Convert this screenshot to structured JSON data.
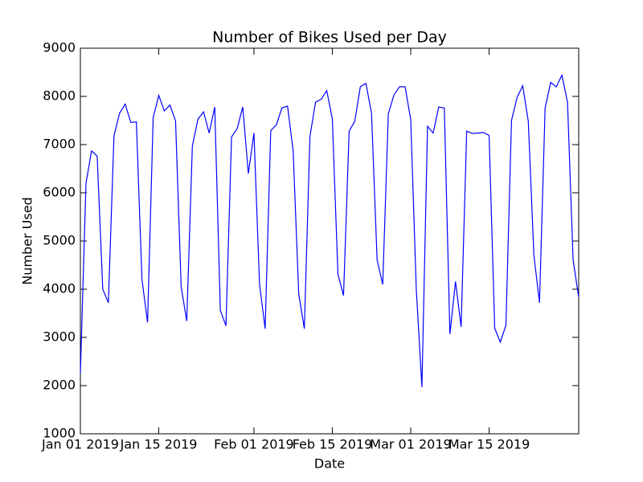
{
  "chart_data": {
    "type": "line",
    "title": "Number of Bikes Used per Day",
    "x_label": "Date",
    "y_label": "Number Used",
    "x": [
      "2019-01-01",
      "2019-01-02",
      "2019-01-03",
      "2019-01-04",
      "2019-01-05",
      "2019-01-06",
      "2019-01-07",
      "2019-01-08",
      "2019-01-09",
      "2019-01-10",
      "2019-01-11",
      "2019-01-12",
      "2019-01-13",
      "2019-01-14",
      "2019-01-15",
      "2019-01-16",
      "2019-01-17",
      "2019-01-18",
      "2019-01-19",
      "2019-01-20",
      "2019-01-21",
      "2019-01-22",
      "2019-01-23",
      "2019-01-24",
      "2019-01-25",
      "2019-01-26",
      "2019-01-27",
      "2019-01-28",
      "2019-01-29",
      "2019-01-30",
      "2019-01-31",
      "2019-02-01",
      "2019-02-02",
      "2019-02-03",
      "2019-02-04",
      "2019-02-05",
      "2019-02-06",
      "2019-02-07",
      "2019-02-08",
      "2019-02-09",
      "2019-02-10",
      "2019-02-11",
      "2019-02-12",
      "2019-02-13",
      "2019-02-14",
      "2019-02-15",
      "2019-02-16",
      "2019-02-17",
      "2019-02-18",
      "2019-02-19",
      "2019-02-20",
      "2019-02-21",
      "2019-02-22",
      "2019-02-23",
      "2019-02-24",
      "2019-02-25",
      "2019-02-26",
      "2019-02-27",
      "2019-02-28",
      "2019-03-01",
      "2019-03-02",
      "2019-03-03",
      "2019-03-04",
      "2019-03-05",
      "2019-03-06",
      "2019-03-07",
      "2019-03-08",
      "2019-03-09",
      "2019-03-10",
      "2019-03-11",
      "2019-03-12",
      "2019-03-13",
      "2019-03-14",
      "2019-03-15",
      "2019-03-16",
      "2019-03-17",
      "2019-03-18",
      "2019-03-19",
      "2019-03-20",
      "2019-03-21",
      "2019-03-22",
      "2019-03-23",
      "2019-03-24",
      "2019-03-25",
      "2019-03-26",
      "2019-03-27",
      "2019-03-28",
      "2019-03-29",
      "2019-03-30",
      "2019-03-31"
    ],
    "series": [
      {
        "name": "Number Used",
        "color": "#0000ff",
        "values": [
          2250,
          6200,
          6870,
          6760,
          4000,
          3720,
          7180,
          7650,
          7840,
          7460,
          7470,
          4200,
          3310,
          7560,
          8020,
          7700,
          7820,
          7490,
          4050,
          3340,
          6970,
          7530,
          7680,
          7240,
          7780,
          3560,
          3240,
          7160,
          7330,
          7780,
          6400,
          7240,
          4100,
          3180,
          7290,
          7410,
          7760,
          7800,
          6870,
          3900,
          3180,
          7170,
          7880,
          7940,
          8120,
          7530,
          4310,
          3870,
          7280,
          7480,
          8200,
          8270,
          7650,
          4600,
          4100,
          7640,
          8030,
          8200,
          8200,
          7520,
          3980,
          1970,
          7380,
          7240,
          7780,
          7760,
          3070,
          4160,
          3220,
          7280,
          7230,
          7240,
          7250,
          7190,
          3190,
          2900,
          3250,
          7500,
          7980,
          8220,
          7480,
          4700,
          3720,
          7760,
          8290,
          8200,
          8440,
          7880,
          4610,
          3830
        ]
      }
    ],
    "xlim": [
      "2019-01-01",
      "2019-03-31"
    ],
    "xticks": [
      {
        "value": "2019-01-01",
        "label": "Jan 01 2019"
      },
      {
        "value": "2019-01-15",
        "label": "Jan 15 2019"
      },
      {
        "value": "2019-02-01",
        "label": "Feb 01 2019"
      },
      {
        "value": "2019-02-15",
        "label": "Feb 15 2019"
      },
      {
        "value": "2019-03-01",
        "label": "Mar 01 2019"
      },
      {
        "value": "2019-03-15",
        "label": "Mar 15 2019"
      }
    ],
    "ylim": [
      1000,
      9000
    ],
    "yticks": [
      1000,
      2000,
      3000,
      4000,
      5000,
      6000,
      7000,
      8000,
      9000
    ],
    "grid": false
  }
}
